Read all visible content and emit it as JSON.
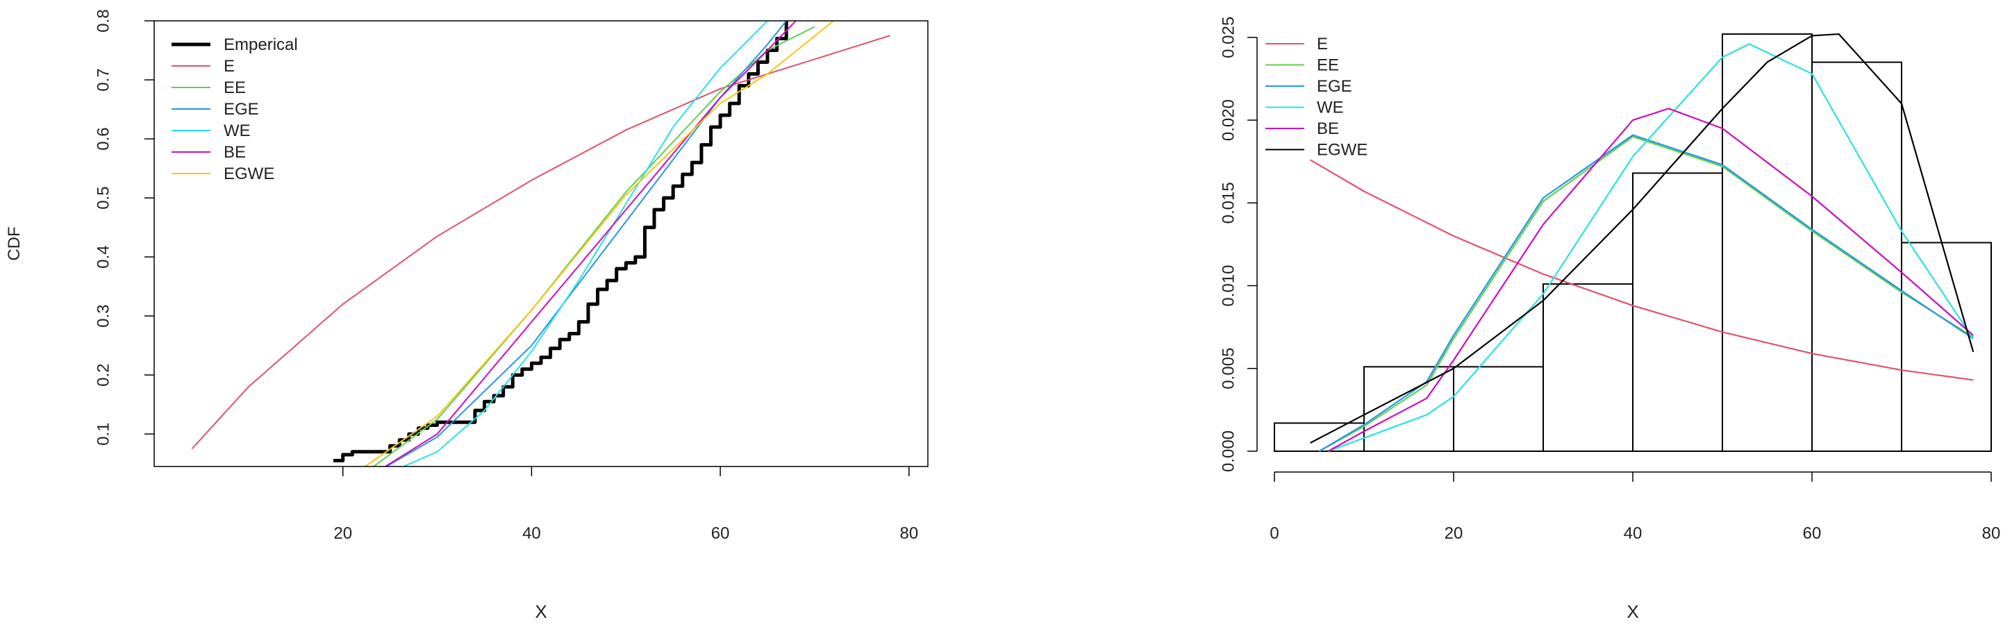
{
  "chart_data": [
    {
      "type": "line",
      "xlabel": "X",
      "ylabel": "CDF",
      "xlim": [
        0,
        82
      ],
      "ylim": [
        0.045,
        0.8
      ],
      "x_ticks": [
        20,
        40,
        60,
        80
      ],
      "y_ticks": [
        0.1,
        0.2,
        0.3,
        0.4,
        0.5,
        0.6,
        0.7,
        0.8
      ],
      "legend_position": "top-left",
      "legend": [
        "Emperical",
        "E",
        "EE",
        "EGE",
        "WE",
        "BE",
        "EGWE"
      ],
      "series": [
        {
          "name": "Emperical",
          "color": "#000000",
          "step": true,
          "x": [
            19.0,
            20.0,
            21.0,
            25.0,
            26.0,
            27.0,
            28.0,
            29.0,
            30.0,
            34.0,
            35.0,
            36.0,
            37.0,
            38.0,
            39.0,
            40.0,
            41.0,
            42.0,
            43.0,
            44.0,
            45.0,
            46.0,
            47.0,
            48.0,
            49.0,
            50.0,
            51.0,
            52.0,
            53.0,
            54.0,
            55.0,
            56.0,
            57.0,
            58.0,
            59.0,
            60.0,
            61.0,
            62.0,
            63.0,
            64.0,
            65.0,
            66.0,
            67.0
          ],
          "y": [
            0.055,
            0.065,
            0.07,
            0.08,
            0.09,
            0.1,
            0.11,
            0.115,
            0.12,
            0.14,
            0.155,
            0.165,
            0.18,
            0.2,
            0.21,
            0.22,
            0.23,
            0.245,
            0.26,
            0.27,
            0.29,
            0.32,
            0.345,
            0.36,
            0.38,
            0.39,
            0.4,
            0.45,
            0.48,
            0.5,
            0.52,
            0.54,
            0.56,
            0.59,
            0.62,
            0.64,
            0.66,
            0.69,
            0.71,
            0.73,
            0.75,
            0.77,
            0.8
          ]
        },
        {
          "name": "E",
          "color": "#df536b",
          "x": [
            4,
            10,
            20,
            30,
            40,
            50,
            60,
            70,
            78
          ],
          "y": [
            0.075,
            0.18,
            0.32,
            0.435,
            0.53,
            0.615,
            0.685,
            0.735,
            0.775
          ]
        },
        {
          "name": "EE",
          "color": "#61d04f",
          "x": [
            22,
            30,
            40,
            50,
            60,
            65,
            70
          ],
          "y": [
            0.03,
            0.125,
            0.31,
            0.51,
            0.68,
            0.75,
            0.79
          ]
        },
        {
          "name": "EGE",
          "color": "#2297e6",
          "x": [
            23,
            30,
            40,
            50,
            60,
            65,
            67
          ],
          "y": [
            0.03,
            0.095,
            0.25,
            0.46,
            0.67,
            0.76,
            0.8
          ]
        },
        {
          "name": "WE",
          "color": "#28e2e5",
          "x": [
            25,
            30,
            35,
            40,
            45,
            50,
            55,
            60,
            65
          ],
          "y": [
            0.035,
            0.07,
            0.14,
            0.24,
            0.36,
            0.49,
            0.62,
            0.72,
            0.8
          ]
        },
        {
          "name": "BE",
          "color": "#cd0bbc",
          "x": [
            23,
            30,
            40,
            50,
            60,
            65,
            68
          ],
          "y": [
            0.03,
            0.1,
            0.29,
            0.48,
            0.67,
            0.75,
            0.8
          ]
        },
        {
          "name": "EGWE",
          "color": "#f5c710",
          "x": [
            21,
            30,
            40,
            50,
            60,
            65,
            72
          ],
          "y": [
            0.03,
            0.13,
            0.31,
            0.505,
            0.66,
            0.71,
            0.8
          ]
        }
      ]
    },
    {
      "type": "bar",
      "xlabel": "X",
      "ylabel": "",
      "xlim": [
        0,
        80
      ],
      "ylim": [
        0,
        0.026
      ],
      "x_ticks": [
        0,
        20,
        40,
        60,
        80
      ],
      "y_ticks": [
        "0.000",
        "0.005",
        "0.010",
        "0.015",
        "0.020",
        "0.025"
      ],
      "legend_position": "top-left",
      "legend": [
        "E",
        "EE",
        "EGE",
        "WE",
        "BE",
        "EGWE"
      ],
      "histogram": {
        "bin_edges": [
          0,
          10,
          20,
          30,
          40,
          50,
          60,
          70,
          80
        ],
        "density": [
          0.0017,
          0.0051,
          0.0051,
          0.0101,
          0.0168,
          0.0252,
          0.0235,
          0.0126
        ]
      },
      "series": [
        {
          "name": "E",
          "color": "#df536b",
          "x": [
            4,
            10,
            20,
            30,
            40,
            50,
            60,
            70,
            78
          ],
          "y": [
            0.0176,
            0.0157,
            0.013,
            0.0107,
            0.0088,
            0.0072,
            0.0059,
            0.0049,
            0.0043
          ]
        },
        {
          "name": "EE",
          "color": "#61d04f",
          "x": [
            5,
            10,
            17,
            20,
            30,
            40,
            50,
            60,
            70,
            78
          ],
          "y": [
            0.0,
            0.0015,
            0.004,
            0.0068,
            0.0151,
            0.019,
            0.0172,
            0.0133,
            0.0096,
            0.0069
          ]
        },
        {
          "name": "EGE",
          "color": "#2297e6",
          "x": [
            5,
            10,
            17,
            20,
            30,
            40,
            50,
            60,
            70,
            78
          ],
          "y": [
            0.0,
            0.0016,
            0.0042,
            0.007,
            0.0153,
            0.0191,
            0.0173,
            0.0134,
            0.0097,
            0.0068
          ]
        },
        {
          "name": "WE",
          "color": "#28e2e5",
          "x": [
            6,
            10,
            17,
            20,
            30,
            40,
            50,
            53,
            60,
            70,
            78
          ],
          "y": [
            0.0,
            0.0008,
            0.0022,
            0.0033,
            0.0095,
            0.0178,
            0.0238,
            0.0246,
            0.0228,
            0.0133,
            0.0068
          ]
        },
        {
          "name": "BE",
          "color": "#cd0bbc",
          "x": [
            6,
            10,
            17,
            20,
            30,
            40,
            44,
            50,
            60,
            70,
            78
          ],
          "y": [
            0.0,
            0.0012,
            0.0032,
            0.0055,
            0.0137,
            0.02,
            0.0207,
            0.0195,
            0.0154,
            0.0108,
            0.007
          ]
        },
        {
          "name": "EGWE",
          "color": "#000000",
          "x": [
            4,
            10,
            20,
            30,
            40,
            50,
            55,
            60,
            63,
            70,
            78
          ],
          "y": [
            0.0005,
            0.0022,
            0.005,
            0.0091,
            0.0146,
            0.0207,
            0.0235,
            0.0251,
            0.0252,
            0.021,
            0.006
          ]
        }
      ]
    }
  ]
}
